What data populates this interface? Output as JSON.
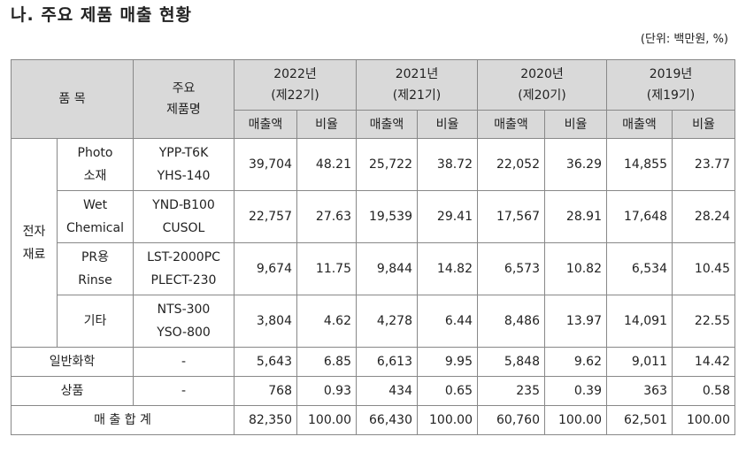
{
  "title": "나. 주요 제품 매출 현황",
  "unit": "(단위: 백만원, %)",
  "header": {
    "item": "품 목",
    "product_line1": "주요",
    "product_line2": "제품명",
    "years": [
      {
        "year": "2022년",
        "period": "(제22기)"
      },
      {
        "year": "2021년",
        "period": "(제21기)"
      },
      {
        "year": "2020년",
        "period": "(제20기)"
      },
      {
        "year": "2019년",
        "period": "(제19기)"
      }
    ],
    "sales": "매출액",
    "ratio": "비율"
  },
  "group": {
    "line1": "전자",
    "line2": "재료"
  },
  "rows": [
    {
      "cat1": "Photo",
      "cat2": "소재",
      "p1": "YPP-T6K",
      "p2": "YHS-140",
      "v": [
        "39,704",
        "48.21",
        "25,722",
        "38.72",
        "22,052",
        "36.29",
        "14,855",
        "23.77"
      ]
    },
    {
      "cat1": "Wet",
      "cat2": "Chemical",
      "p1": "YND-B100",
      "p2": "CUSOL",
      "v": [
        "22,757",
        "27.63",
        "19,539",
        "29.41",
        "17,567",
        "28.91",
        "17,648",
        "28.24"
      ]
    },
    {
      "cat1": "PR용",
      "cat2": "Rinse",
      "p1": "LST-2000PC",
      "p2": "PLECT-230",
      "v": [
        "9,674",
        "11.75",
        "9,844",
        "14.82",
        "6,573",
        "10.82",
        "6,534",
        "10.45"
      ]
    },
    {
      "cat1": "기타",
      "cat2": "",
      "p1": "NTS-300",
      "p2": "YSO-800",
      "v": [
        "3,804",
        "4.62",
        "4,278",
        "6.44",
        "8,486",
        "13.97",
        "14,091",
        "22.55"
      ]
    }
  ],
  "general": {
    "label": "일반화학",
    "product": "-",
    "v": [
      "5,643",
      "6.85",
      "6,613",
      "9.95",
      "5,848",
      "9.62",
      "9,011",
      "14.42"
    ]
  },
  "goods": {
    "label": "상품",
    "product": "-",
    "v": [
      "768",
      "0.93",
      "434",
      "0.65",
      "235",
      "0.39",
      "363",
      "0.58"
    ]
  },
  "total": {
    "label": "매 출 합 계",
    "v": [
      "82,350",
      "100.00",
      "66,430",
      "100.00",
      "60,760",
      "100.00",
      "62,501",
      "100.00"
    ]
  }
}
